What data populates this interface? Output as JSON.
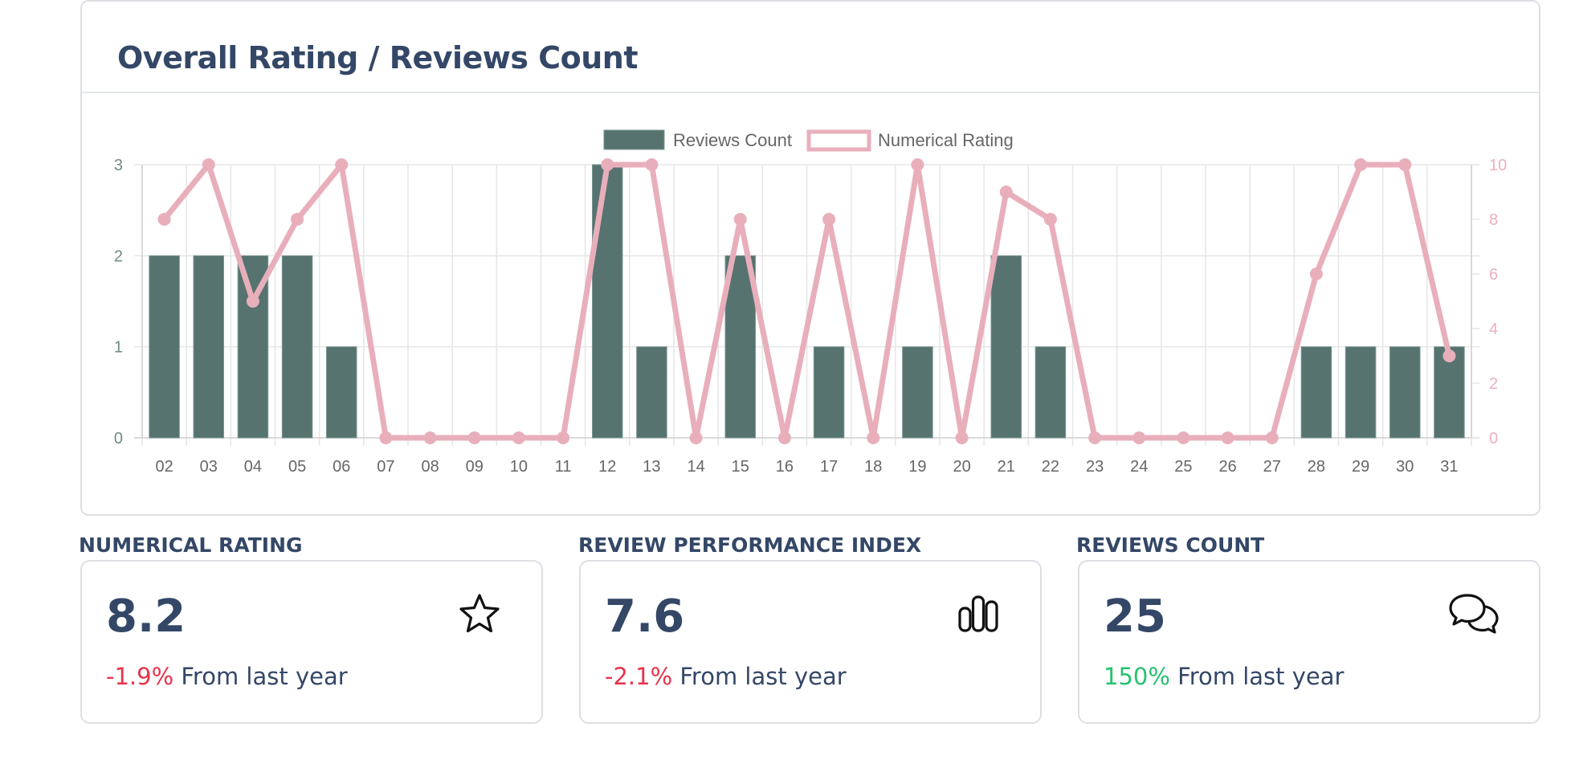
{
  "chart_card": {
    "title": "Overall Rating / Reviews Count"
  },
  "chart_data": {
    "type": "bar",
    "categories": [
      "02",
      "03",
      "04",
      "05",
      "06",
      "07",
      "08",
      "09",
      "10",
      "11",
      "12",
      "13",
      "14",
      "15",
      "16",
      "17",
      "18",
      "19",
      "20",
      "21",
      "22",
      "23",
      "24",
      "25",
      "26",
      "27",
      "28",
      "29",
      "30",
      "31"
    ],
    "series": [
      {
        "name": "Reviews Count",
        "type": "bar",
        "axis": "left",
        "color": "#56736f",
        "values": [
          2,
          2,
          2,
          2,
          1,
          0,
          0,
          0,
          0,
          0,
          3,
          1,
          0,
          2,
          0,
          1,
          0,
          1,
          0,
          2,
          1,
          0,
          0,
          0,
          0,
          0,
          1,
          1,
          1,
          1
        ]
      },
      {
        "name": "Numerical Rating",
        "type": "line",
        "axis": "right",
        "color": "#e8afbb",
        "values": [
          8,
          10,
          5,
          8,
          10,
          0,
          0,
          0,
          0,
          0,
          10,
          10,
          0,
          8,
          0,
          8,
          0,
          10,
          0,
          9,
          8,
          0,
          0,
          0,
          0,
          0,
          6,
          10,
          10,
          3
        ]
      }
    ],
    "y_left": {
      "min": 0,
      "max": 3,
      "ticks": [
        "0",
        "1",
        "2",
        "3"
      ]
    },
    "y_right": {
      "min": 0,
      "max": 10,
      "ticks": [
        "0",
        "2",
        "4",
        "6",
        "8",
        "10"
      ]
    },
    "legend_position": "top-center",
    "grid": true
  },
  "stats": [
    {
      "label": "NUMERICAL RATING",
      "value": "8.2",
      "delta": "-1.9%",
      "trend": "down",
      "suffix": "From last year",
      "icon": "star-icon"
    },
    {
      "label": "REVIEW PERFORMANCE INDEX",
      "value": "7.6",
      "delta": "-2.1%",
      "trend": "down",
      "suffix": "From last year",
      "icon": "bar-chart-icon"
    },
    {
      "label": "REVIEWS COUNT",
      "value": "25",
      "delta": "150%",
      "trend": "up",
      "suffix": "From last year",
      "icon": "chat-bubbles-icon"
    }
  ]
}
